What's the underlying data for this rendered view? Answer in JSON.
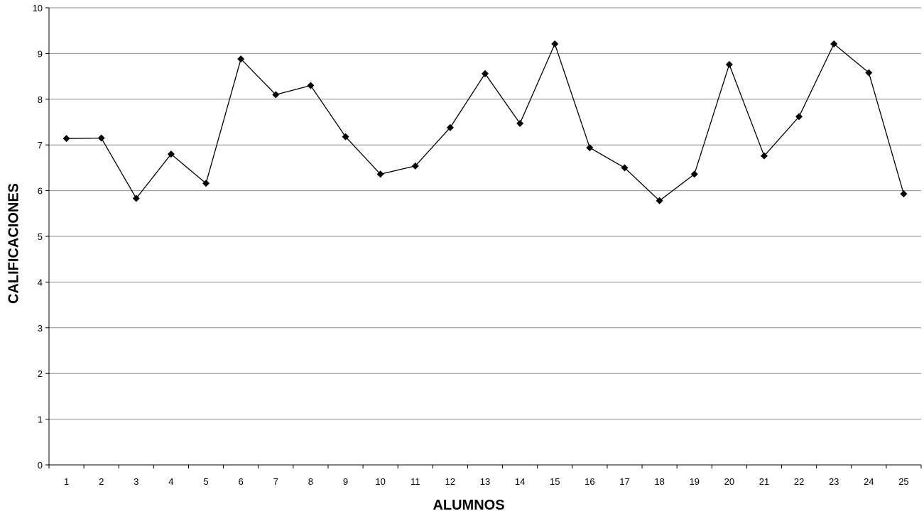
{
  "chart_data": {
    "type": "line",
    "title": "",
    "xlabel": "ALUMNOS",
    "ylabel": "CALIFICACIONES",
    "ylim": [
      0,
      10
    ],
    "yticks": [
      0,
      1,
      2,
      3,
      4,
      5,
      6,
      7,
      8,
      9,
      10
    ],
    "grid": true,
    "legend": "none",
    "categories": [
      "1",
      "2",
      "3",
      "4",
      "5",
      "6",
      "7",
      "8",
      "9",
      "10",
      "11",
      "12",
      "13",
      "14",
      "15",
      "16",
      "17",
      "18",
      "19",
      "20",
      "21",
      "22",
      "23",
      "24",
      "25"
    ],
    "series": [
      {
        "values": [
          7.14,
          7.15,
          5.83,
          6.8,
          6.16,
          8.88,
          8.1,
          8.3,
          7.18,
          6.36,
          6.54,
          7.38,
          8.56,
          7.47,
          9.21,
          6.94,
          6.5,
          5.78,
          6.36,
          8.76,
          6.76,
          7.62,
          9.21,
          8.58,
          5.93
        ],
        "color": "#000000",
        "marker": "diamond"
      }
    ]
  }
}
